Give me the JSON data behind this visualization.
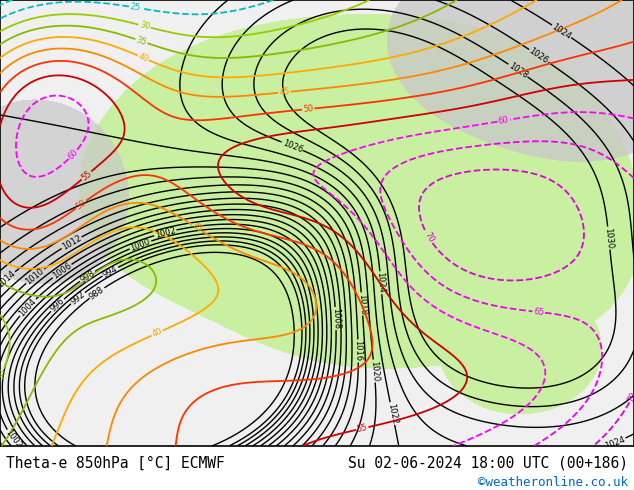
{
  "title_left": "Theta-e 850hPa [°C] ECMWF",
  "title_right": "Su 02-06-2024 18:00 UTC (00+186)",
  "credit": "©weatheronline.co.uk",
  "background_color": "#ffffff",
  "border_color": "#000000",
  "title_fontsize": 10.5,
  "credit_fontsize": 9,
  "credit_color": "#0066cc",
  "map_background": "#f0f0f0",
  "land_color": "#e8e8e8",
  "green_fill_color": "#c8f0a0",
  "gray_fill_color": "#c8c8c8"
}
